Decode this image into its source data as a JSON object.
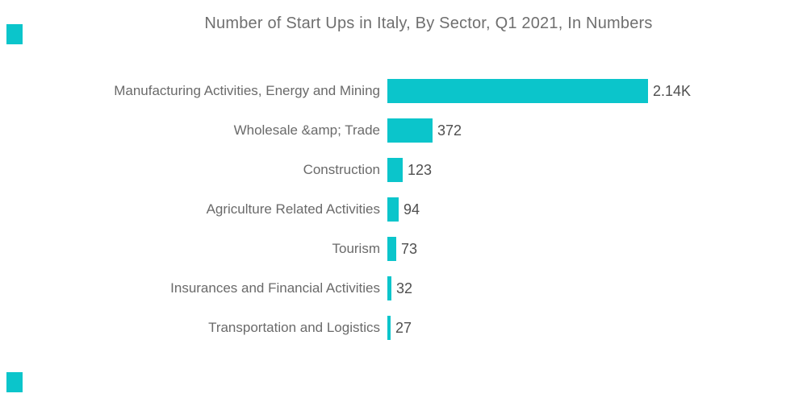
{
  "page": {
    "background_color": "#ffffff"
  },
  "decorations": {
    "corner_square_color": "#0bc5cb"
  },
  "colors": {
    "bar": "#0bc5cb",
    "title_text": "#6f6f6f",
    "category_text": "#6a6a6a",
    "value_text": "#4f4f4f"
  },
  "chart_data": {
    "type": "bar",
    "orientation": "horizontal",
    "title": "Number of Start Ups in Italy, By Sector, Q1 2021, In Numbers",
    "categories": [
      "Manufacturing Activities, Energy and Mining",
      "Wholesale &amp; Trade",
      "Construction",
      "Agriculture Related Activities",
      "Tourism",
      "Insurances and Financial Activities",
      "Transportation and Logistics"
    ],
    "values": [
      2140,
      372,
      123,
      94,
      73,
      32,
      27
    ],
    "value_labels": [
      "2.14K",
      "372",
      "123",
      "94",
      "73",
      "32",
      "27"
    ],
    "xlim": [
      0,
      2140
    ],
    "grid": false,
    "legend": false,
    "bar_color": "#0bc5cb"
  }
}
